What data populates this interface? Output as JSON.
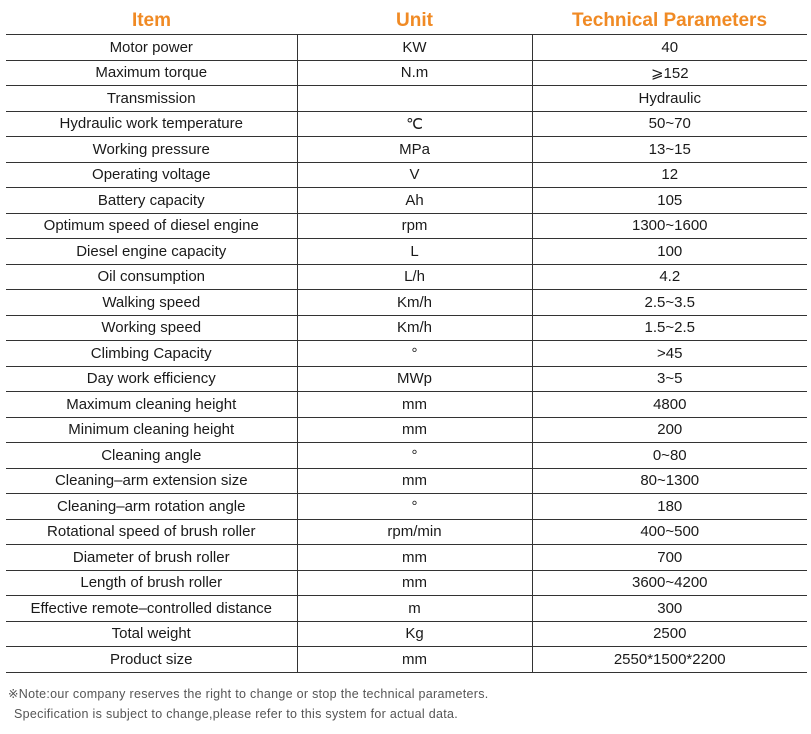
{
  "headers": {
    "item": "Item",
    "unit": "Unit",
    "params": "Technical Parameters"
  },
  "rows": [
    {
      "item": "Motor power",
      "unit": "KW",
      "value": "40"
    },
    {
      "item": "Maximum torque",
      "unit": "N.m",
      "value": "⩾152"
    },
    {
      "item": "Transmission",
      "unit": "",
      "value": "Hydraulic"
    },
    {
      "item": "Hydraulic work temperature",
      "unit": "℃",
      "value": "50~70"
    },
    {
      "item": "Working pressure",
      "unit": "MPa",
      "value": "13~15"
    },
    {
      "item": "Operating voltage",
      "unit": "V",
      "value": "12"
    },
    {
      "item": "Battery capacity",
      "unit": "Ah",
      "value": "105"
    },
    {
      "item": "Optimum speed of diesel engine",
      "unit": "rpm",
      "value": "1300~1600"
    },
    {
      "item": "Diesel engine capacity",
      "unit": "L",
      "value": "100"
    },
    {
      "item": "Oil consumption",
      "unit": "L/h",
      "value": "4.2"
    },
    {
      "item": "Walking speed",
      "unit": "Km/h",
      "value": "2.5~3.5"
    },
    {
      "item": "Working speed",
      "unit": "Km/h",
      "value": "1.5~2.5"
    },
    {
      "item": "Climbing Capacity",
      "unit": "°",
      "value": ">45"
    },
    {
      "item": "Day work efficiency",
      "unit": "MWp",
      "value": "3~5"
    },
    {
      "item": "Maximum cleaning height",
      "unit": "mm",
      "value": "4800"
    },
    {
      "item": "Minimum cleaning height",
      "unit": "mm",
      "value": "200"
    },
    {
      "item": "Cleaning angle",
      "unit": "°",
      "value": "0~80"
    },
    {
      "item": "Cleaning–arm extension size",
      "unit": "mm",
      "value": "80~1300"
    },
    {
      "item": "Cleaning–arm rotation angle",
      "unit": "°",
      "value": "180"
    },
    {
      "item": "Rotational speed of brush roller",
      "unit": "rpm/min",
      "value": "400~500"
    },
    {
      "item": "Diameter of brush roller",
      "unit": "mm",
      "value": "700"
    },
    {
      "item": "Length of brush roller",
      "unit": "mm",
      "value": "3600~4200"
    },
    {
      "item": "Effective remote–controlled distance",
      "unit": "m",
      "value": "300"
    },
    {
      "item": "Total weight",
      "unit": "Kg",
      "value": "2500"
    },
    {
      "item": "Product size",
      "unit": "mm",
      "value": "2550*1500*2200"
    }
  ],
  "notes": {
    "line1": "※Note:our company reserves the right to change or stop the technical parameters.",
    "line2": "Specification is subject to change,please refer to this system for actual data."
  },
  "colors": {
    "header": "#f08a24",
    "text": "#1a1a1a",
    "rule": "#333333"
  }
}
